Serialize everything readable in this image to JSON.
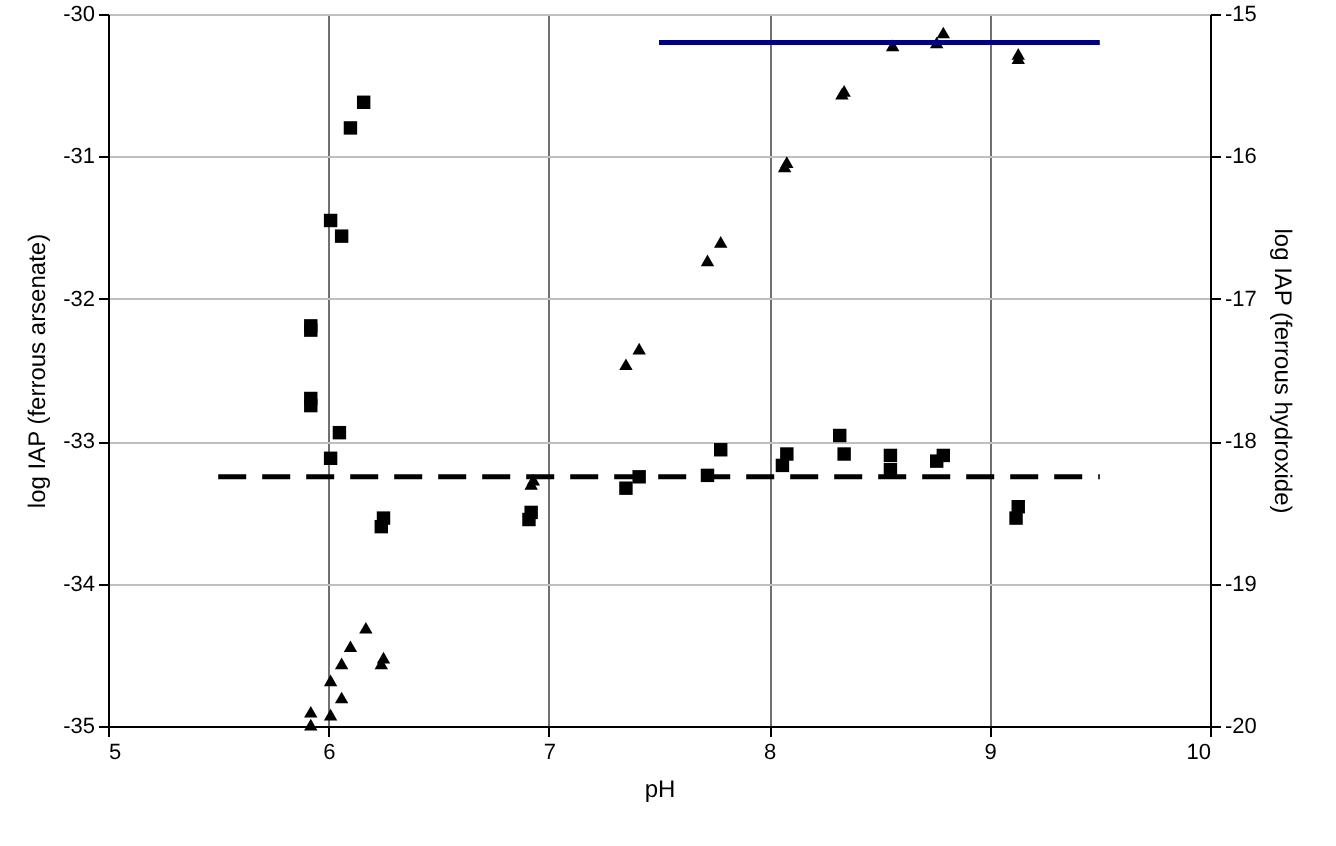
{
  "chart_data": {
    "type": "scatter",
    "xlabel": "pH",
    "ylabel": "log IAP (ferrous arsenate)",
    "y2label": "log IAP (ferrous hydroxide)",
    "xlim": [
      5,
      10
    ],
    "xticks": [
      5,
      6,
      7,
      8,
      9,
      10
    ],
    "ylim": [
      -35,
      -30
    ],
    "yticks": [
      -35,
      -34,
      -33,
      -32,
      -31,
      -30
    ],
    "y2lim": [
      -20,
      -15
    ],
    "y2ticks": [
      -20,
      -19,
      -18,
      -17,
      -16,
      -15
    ],
    "grid": true,
    "series": [
      {
        "marker": "square",
        "color": "#000000",
        "x": [
          6.16,
          6.1,
          6.01,
          6.06,
          5.92,
          5.92,
          5.92,
          5.92
        ],
        "values": [
          -30.62,
          -30.8,
          -31.45,
          -31.56,
          -32.19,
          -32.22,
          -32.7,
          -32.75
        ]
      },
      {
        "marker": "square",
        "color": "#000000",
        "x": [
          6.05,
          6.01,
          6.25,
          6.24,
          6.92,
          6.91,
          7.35,
          7.41,
          7.72,
          7.78,
          8.06,
          8.08,
          8.32,
          8.34,
          8.55,
          8.55,
          8.76,
          8.79,
          9.13,
          9.12
        ],
        "values": [
          -32.94,
          -33.12,
          -33.54,
          -33.6,
          -33.5,
          -33.55,
          -33.33,
          -33.25,
          -33.24,
          -33.06,
          -33.17,
          -33.09,
          -32.96,
          -33.09,
          -33.1,
          -33.2,
          -33.14,
          -33.1,
          -33.46,
          -33.54
        ]
      },
      {
        "axis": "y2",
        "marker": "triangle",
        "color": "#000000",
        "x": [
          6.17,
          6.1,
          6.06,
          6.01,
          6.06,
          6.01,
          5.92,
          5.92,
          6.25,
          6.24,
          6.92,
          6.93,
          7.35,
          7.41,
          7.72,
          7.78,
          8.07,
          8.08,
          8.33,
          8.34
        ],
        "values": [
          -19.31,
          -19.44,
          -19.56,
          -19.68,
          -19.8,
          -19.92,
          -19.9,
          -19.99,
          -19.52,
          -19.56,
          -18.3,
          -18.27,
          -17.46,
          -17.35,
          -16.73,
          -16.6,
          -16.07,
          -16.04,
          -15.56,
          -15.54
        ]
      },
      {
        "axis": "y2",
        "marker": "triangle",
        "color": "#000000",
        "x": [
          8.56,
          8.76,
          8.79,
          9.13,
          9.13
        ],
        "values": [
          -15.22,
          -15.2,
          -15.13,
          -15.31,
          -15.28
        ]
      },
      {
        "type": "line",
        "line_style": "dashed",
        "color": "#000000",
        "x": [
          5.5,
          9.5
        ],
        "values": [
          -33.25,
          -33.25
        ]
      },
      {
        "type": "line",
        "axis": "y2",
        "line_style": "solid",
        "color": "#000080",
        "x": [
          7.5,
          9.5
        ],
        "values": [
          -15.2,
          -15.2
        ]
      }
    ]
  }
}
